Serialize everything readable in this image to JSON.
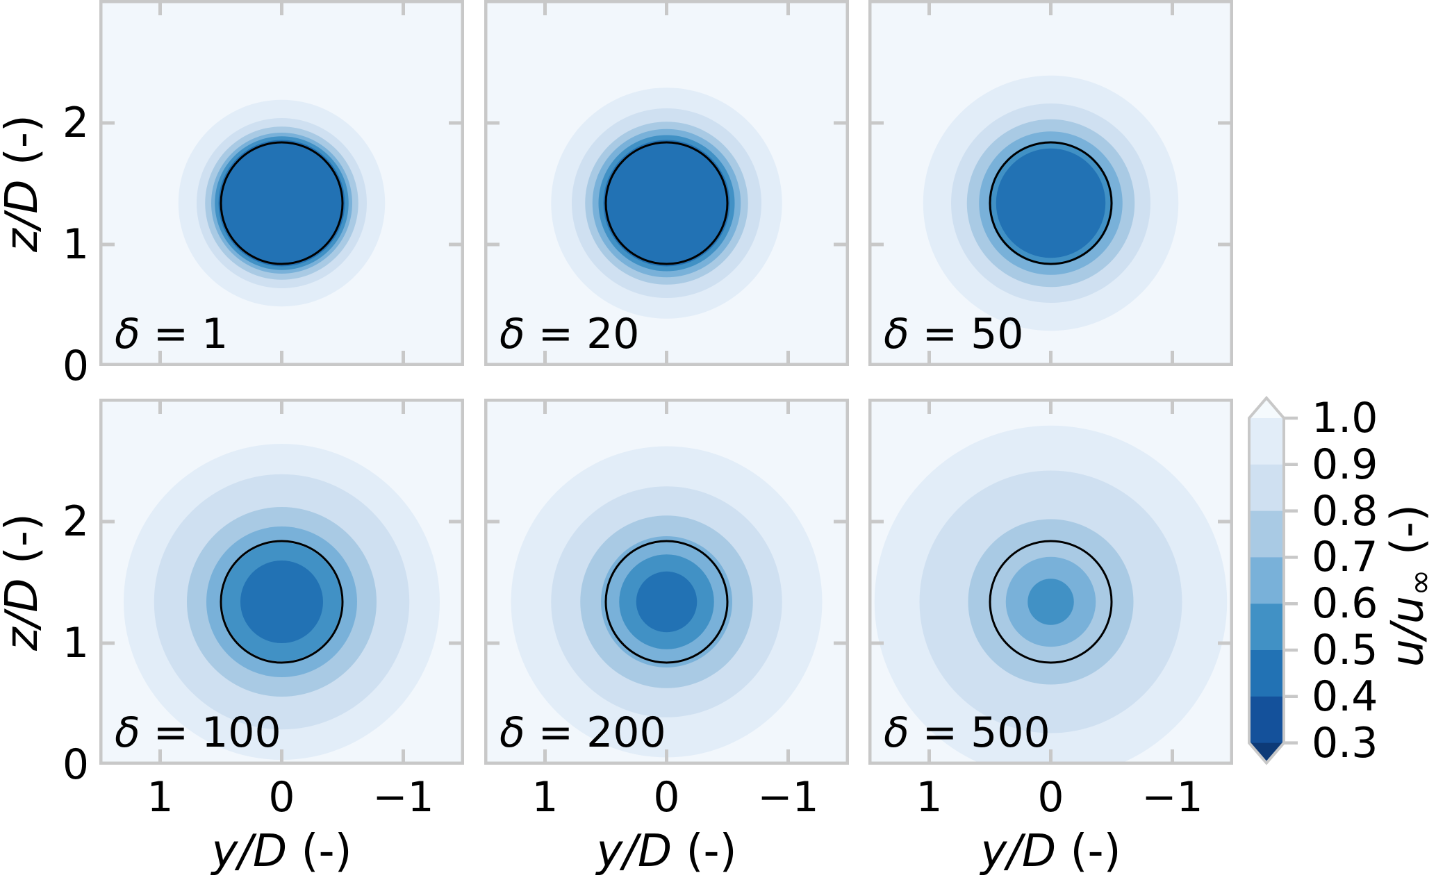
{
  "figure": {
    "background": "#ffffff",
    "axis_style": {
      "spine_color": "#c8c8c8",
      "tick_color": "#c8c8c8",
      "tick_direction": "in",
      "text_color": "#000000"
    }
  },
  "chart_data": {
    "type": "heatmap",
    "subtype": "filled_contour_grid",
    "title": "",
    "description": "Grid of 2x3 filled contour plots of normalized velocity u/u-infinity in the y/D - z/D plane for increasing diffusion parameter delta; a black circle of diameter D marks the rotor at (y/D=0, z/D=1.34).",
    "grid": {
      "rows": 2,
      "cols": 3
    },
    "xlabel": {
      "math": "y/D",
      "unit": "(-)"
    },
    "ylabel": {
      "math": "z/D",
      "unit": "(-)"
    },
    "xlim": [
      1.5,
      -1.5
    ],
    "x_axis_reversed": true,
    "ylim": [
      0,
      3
    ],
    "xticks": [
      1,
      0,
      -1
    ],
    "xtick_labels": [
      "1",
      "0",
      "−1"
    ],
    "yticks": [
      0,
      1,
      2
    ],
    "ytick_labels": [
      "0",
      "1",
      "2"
    ],
    "grid_lines": "off",
    "background_value_color": "#f2f7fc",
    "rotor_outline": {
      "center_yD": 0,
      "center_zD": 1.34,
      "radius_D": 0.5,
      "color": "#000000",
      "stroke_px": 3
    },
    "levels": [
      0.3,
      0.4,
      0.5,
      0.6,
      0.7,
      0.8,
      0.9,
      1.0
    ],
    "band_colors": [
      {
        "range": "< 0.3",
        "color": "#0d3a77"
      },
      {
        "range": "0.3-0.4",
        "color": "#14519b"
      },
      {
        "range": "0.4-0.5",
        "color": "#2272b4"
      },
      {
        "range": "0.5-0.6",
        "color": "#4191c5"
      },
      {
        "range": "0.6-0.7",
        "color": "#79b1d9"
      },
      {
        "range": "0.7-0.8",
        "color": "#a9cae4"
      },
      {
        "range": "0.8-0.9",
        "color": "#cfe0f1"
      },
      {
        "range": "0.9-1.0",
        "color": "#e2edf8"
      },
      {
        "range": "> 1.0",
        "color": "#f5fafd"
      }
    ],
    "panels": [
      {
        "symbol": "δ",
        "value": "1",
        "annotation": "δ = 1",
        "contours": [
          {
            "band": "0.9-1.0",
            "color": "#e2edf8",
            "radius_D": 0.85
          },
          {
            "band": "0.8-0.9",
            "color": "#cfe0f1",
            "radius_D": 0.7
          },
          {
            "band": "0.7-0.8",
            "color": "#a9cae4",
            "radius_D": 0.63
          },
          {
            "band": "0.6-0.7",
            "color": "#79b1d9",
            "radius_D": 0.58
          },
          {
            "band": "0.5-0.6",
            "color": "#4191c5",
            "radius_D": 0.55
          },
          {
            "band": "0.4-0.5",
            "color": "#2272b4",
            "radius_D": 0.52
          }
        ]
      },
      {
        "symbol": "δ",
        "value": "20",
        "annotation": "δ = 20",
        "contours": [
          {
            "band": "0.9-1.0",
            "color": "#e2edf8",
            "radius_D": 0.95
          },
          {
            "band": "0.8-0.9",
            "color": "#cfe0f1",
            "radius_D": 0.78
          },
          {
            "band": "0.7-0.8",
            "color": "#a9cae4",
            "radius_D": 0.67
          },
          {
            "band": "0.6-0.7",
            "color": "#79b1d9",
            "radius_D": 0.61
          },
          {
            "band": "0.5-0.6",
            "color": "#4191c5",
            "radius_D": 0.56
          },
          {
            "band": "0.4-0.5",
            "color": "#2272b4",
            "radius_D": 0.52
          }
        ]
      },
      {
        "symbol": "δ",
        "value": "50",
        "annotation": "δ = 50",
        "contours": [
          {
            "band": "0.9-1.0",
            "color": "#e2edf8",
            "radius_D": 1.05
          },
          {
            "band": "0.8-0.9",
            "color": "#cfe0f1",
            "radius_D": 0.82
          },
          {
            "band": "0.7-0.8",
            "color": "#a9cae4",
            "radius_D": 0.69
          },
          {
            "band": "0.6-0.7",
            "color": "#79b1d9",
            "radius_D": 0.59
          },
          {
            "band": "0.5-0.6",
            "color": "#4191c5",
            "radius_D": 0.51
          },
          {
            "band": "0.4-0.5",
            "color": "#2272b4",
            "radius_D": 0.45
          }
        ]
      },
      {
        "symbol": "δ",
        "value": "100",
        "annotation": "δ = 100",
        "contours": [
          {
            "band": "0.9-1.0",
            "color": "#e2edf8",
            "radius_D": 1.3
          },
          {
            "band": "0.8-0.9",
            "color": "#cfe0f1",
            "radius_D": 1.05
          },
          {
            "band": "0.7-0.8",
            "color": "#a9cae4",
            "radius_D": 0.78
          },
          {
            "band": "0.6-0.7",
            "color": "#79b1d9",
            "radius_D": 0.62
          },
          {
            "band": "0.5-0.6",
            "color": "#4191c5",
            "radius_D": 0.49
          },
          {
            "band": "0.4-0.5",
            "color": "#2272b4",
            "radius_D": 0.34
          }
        ]
      },
      {
        "symbol": "δ",
        "value": "200",
        "annotation": "δ = 200",
        "contours": [
          {
            "band": "0.9-1.0",
            "color": "#e2edf8",
            "radius_D": 1.28
          },
          {
            "band": "0.8-0.9",
            "color": "#cfe0f1",
            "radius_D": 0.95
          },
          {
            "band": "0.7-0.8",
            "color": "#a9cae4",
            "radius_D": 0.71
          },
          {
            "band": "0.6-0.7",
            "color": "#79b1d9",
            "radius_D": 0.54
          },
          {
            "band": "0.5-0.6",
            "color": "#4191c5",
            "radius_D": 0.39
          },
          {
            "band": "0.4-0.5",
            "color": "#2272b4",
            "radius_D": 0.25
          }
        ]
      },
      {
        "symbol": "δ",
        "value": "500",
        "annotation": "δ = 500",
        "contours": [
          {
            "band": "0.9-1.0",
            "color": "#e2edf8",
            "radius_D": 1.45
          },
          {
            "band": "0.8-0.9",
            "color": "#cfe0f1",
            "radius_D": 1.08
          },
          {
            "band": "0.7-0.8",
            "color": "#a9cae4",
            "radius_D": 0.68
          },
          {
            "band": "0.6-0.7",
            "color": "#79b1d9",
            "radius_D": 0.37
          },
          {
            "band": "0.5-0.6",
            "color": "#4191c5",
            "radius_D": 0.19
          }
        ]
      }
    ],
    "colorbar": {
      "label": {
        "math": "u/u",
        "sub": "∞",
        "unit": "(-)"
      },
      "tick_labels": [
        "1.0",
        "0.9",
        "0.8",
        "0.7",
        "0.6",
        "0.5",
        "0.4",
        "0.3"
      ],
      "tick_values": [
        1.0,
        0.9,
        0.8,
        0.7,
        0.6,
        0.5,
        0.4,
        0.3
      ],
      "segment_colors_top_to_bottom": [
        "#e2edf8",
        "#cfe0f1",
        "#a9cae4",
        "#79b1d9",
        "#4191c5",
        "#2272b4",
        "#14519b"
      ],
      "over_color": "#f5fafd",
      "under_color": "#0d3a77",
      "extend": "both",
      "orientation": "vertical",
      "position": "right"
    }
  }
}
